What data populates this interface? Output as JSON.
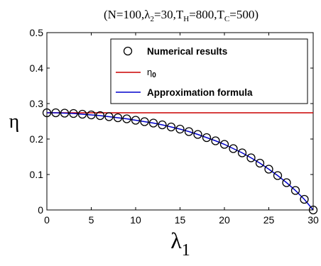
{
  "chart_data": {
    "type": "line",
    "title_parts": {
      "open": "(N=100,",
      "lambda": "λ",
      "lambda_sub": "2",
      "lambda_val": "=30,",
      "th": "T",
      "th_sub": "H",
      "th_val": "=800,",
      "tc": "T",
      "tc_sub": "C",
      "tc_val": "=500)"
    },
    "xlabel": {
      "symbol": "λ",
      "sub": "1"
    },
    "ylabel": "η",
    "xlim": [
      0,
      30
    ],
    "ylim": [
      0,
      0.5
    ],
    "xticks": [
      "0",
      "5",
      "10",
      "15",
      "20",
      "25",
      "30"
    ],
    "yticks": [
      "0",
      "0.1",
      "0.2",
      "0.3",
      "0.4",
      "0.5"
    ],
    "grid": false,
    "legend_position": "top-right",
    "legend": {
      "numerical": "Numerical results",
      "eta0_symbol": "η",
      "eta0_sub": "0",
      "approx": "Approximation formula"
    },
    "colors": {
      "eta0": "#cc0000",
      "approx": "#0000cc",
      "markers": "#000000"
    },
    "series": [
      {
        "name": "Numerical results",
        "style": "markers",
        "x": [
          0,
          1,
          2,
          3,
          4,
          5,
          6,
          7,
          8,
          9,
          10,
          11,
          12,
          13,
          14,
          15,
          16,
          17,
          18,
          19,
          20,
          21,
          22,
          23,
          24,
          25,
          26,
          27,
          28,
          29,
          30
        ],
        "y": [
          0.274,
          0.274,
          0.273,
          0.272,
          0.27,
          0.268,
          0.266,
          0.263,
          0.26,
          0.257,
          0.253,
          0.249,
          0.245,
          0.24,
          0.234,
          0.228,
          0.221,
          0.213,
          0.204,
          0.195,
          0.185,
          0.173,
          0.161,
          0.147,
          0.132,
          0.115,
          0.097,
          0.077,
          0.055,
          0.03,
          0.0
        ]
      },
      {
        "name": "η0",
        "style": "line",
        "x": [
          0,
          30
        ],
        "y": [
          0.274,
          0.274
        ]
      },
      {
        "name": "Approximation formula",
        "style": "line",
        "x": [
          0,
          1,
          2,
          3,
          4,
          5,
          6,
          7,
          8,
          9,
          10,
          11,
          12,
          13,
          14,
          15,
          16,
          17,
          18,
          19,
          20,
          21,
          22,
          23,
          24,
          25,
          26,
          27,
          28,
          29,
          30
        ],
        "y": [
          0.274,
          0.274,
          0.273,
          0.272,
          0.27,
          0.268,
          0.266,
          0.263,
          0.26,
          0.257,
          0.253,
          0.249,
          0.245,
          0.24,
          0.234,
          0.228,
          0.221,
          0.213,
          0.204,
          0.195,
          0.185,
          0.173,
          0.161,
          0.147,
          0.132,
          0.115,
          0.097,
          0.077,
          0.055,
          0.03,
          0.0
        ]
      }
    ]
  }
}
